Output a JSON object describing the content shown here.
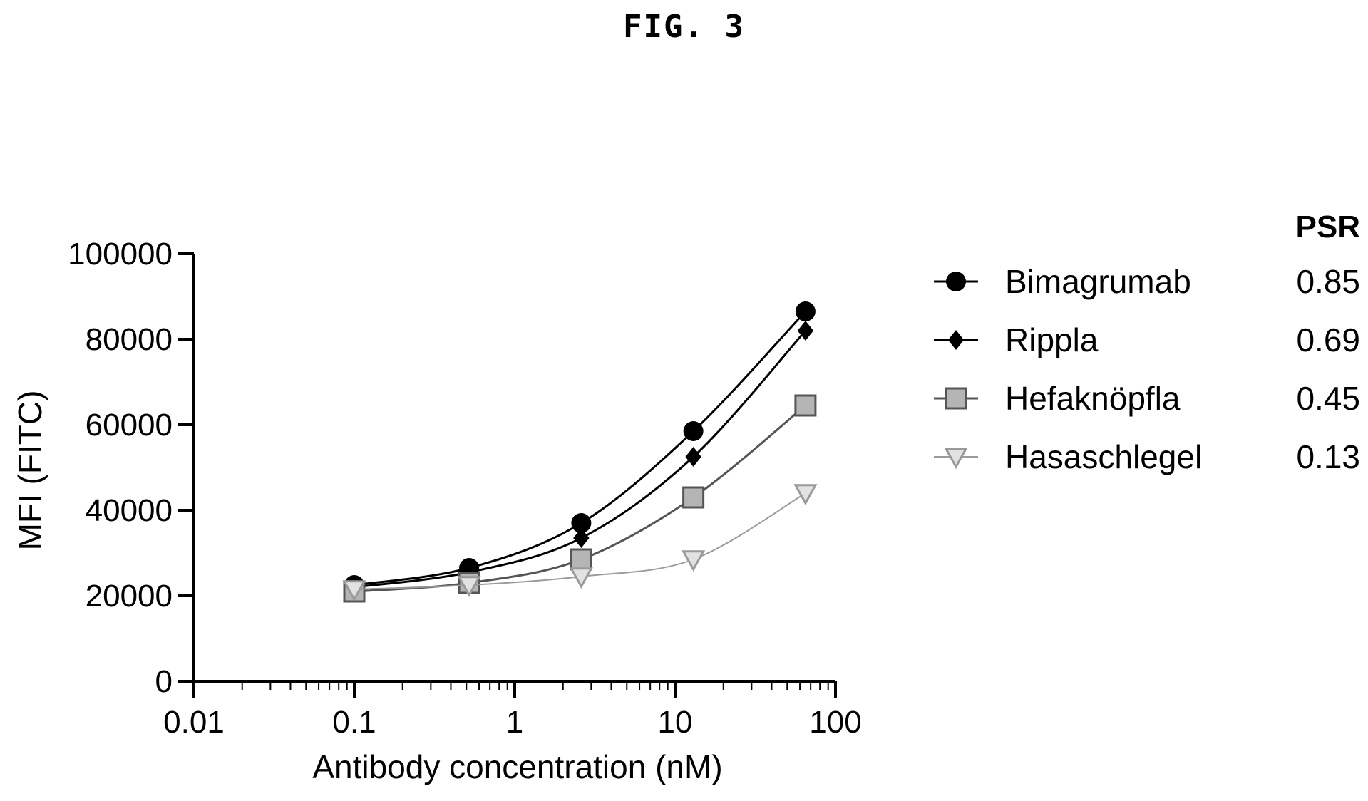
{
  "figure_title": "FIG. 3",
  "chart_data": {
    "type": "line",
    "xscale": "log",
    "xlabel": "Antibody concentration (nM)",
    "ylabel": "MFI (FITC)",
    "xlim": [
      0.01,
      100
    ],
    "ylim": [
      0,
      100000
    ],
    "x_ticks": [
      "0.01",
      "0.1",
      "1",
      "10",
      "100"
    ],
    "y_ticks": [
      "0",
      "20000",
      "40000",
      "60000",
      "80000",
      "100000"
    ],
    "x": [
      0.1,
      0.52,
      2.6,
      13,
      65
    ],
    "legend_header": "PSR",
    "series": [
      {
        "name": "Bimagrumab",
        "psr": "0.85",
        "marker": "circle",
        "color": "#000000",
        "values": [
          22500,
          26500,
          37000,
          58500,
          86500
        ]
      },
      {
        "name": "Rippla",
        "psr": "0.69",
        "marker": "diamond",
        "color": "#000000",
        "values": [
          22000,
          25500,
          33500,
          52500,
          82000
        ]
      },
      {
        "name": "Hefaknöpfla",
        "psr": "0.45",
        "marker": "square",
        "color": "#555555",
        "values": [
          21000,
          23000,
          28500,
          43000,
          64500
        ]
      },
      {
        "name": "Hasaschlegel",
        "psr": "0.13",
        "marker": "triangle-down",
        "color": "#9a9a9a",
        "values": [
          21500,
          22500,
          24500,
          28500,
          44000
        ]
      }
    ]
  }
}
